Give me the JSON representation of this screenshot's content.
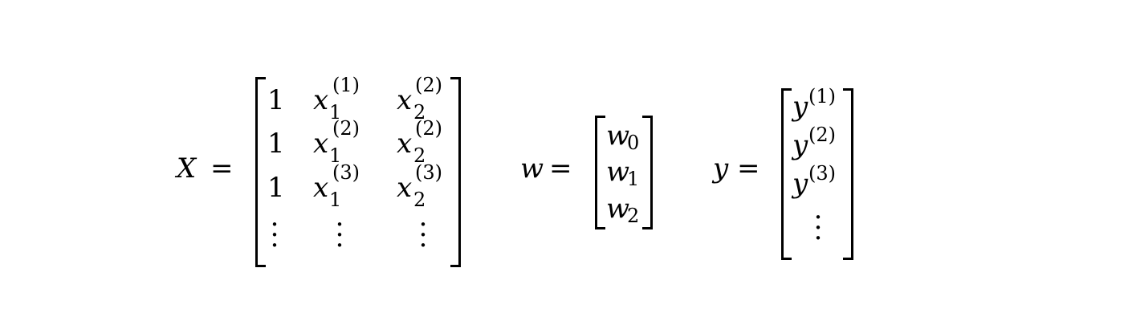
{
  "X_label": "X",
  "w_label": "w",
  "y_label": "y",
  "equals": "=",
  "one": "1",
  "x_var": "x",
  "w_var": "w",
  "y_var": "y",
  "idx1": "1",
  "idx2": "2",
  "sup1": "(1)",
  "sup2": "(2)",
  "sup3": "(3)",
  "w_subs": [
    "0",
    "1",
    "2"
  ],
  "dot": "·"
}
